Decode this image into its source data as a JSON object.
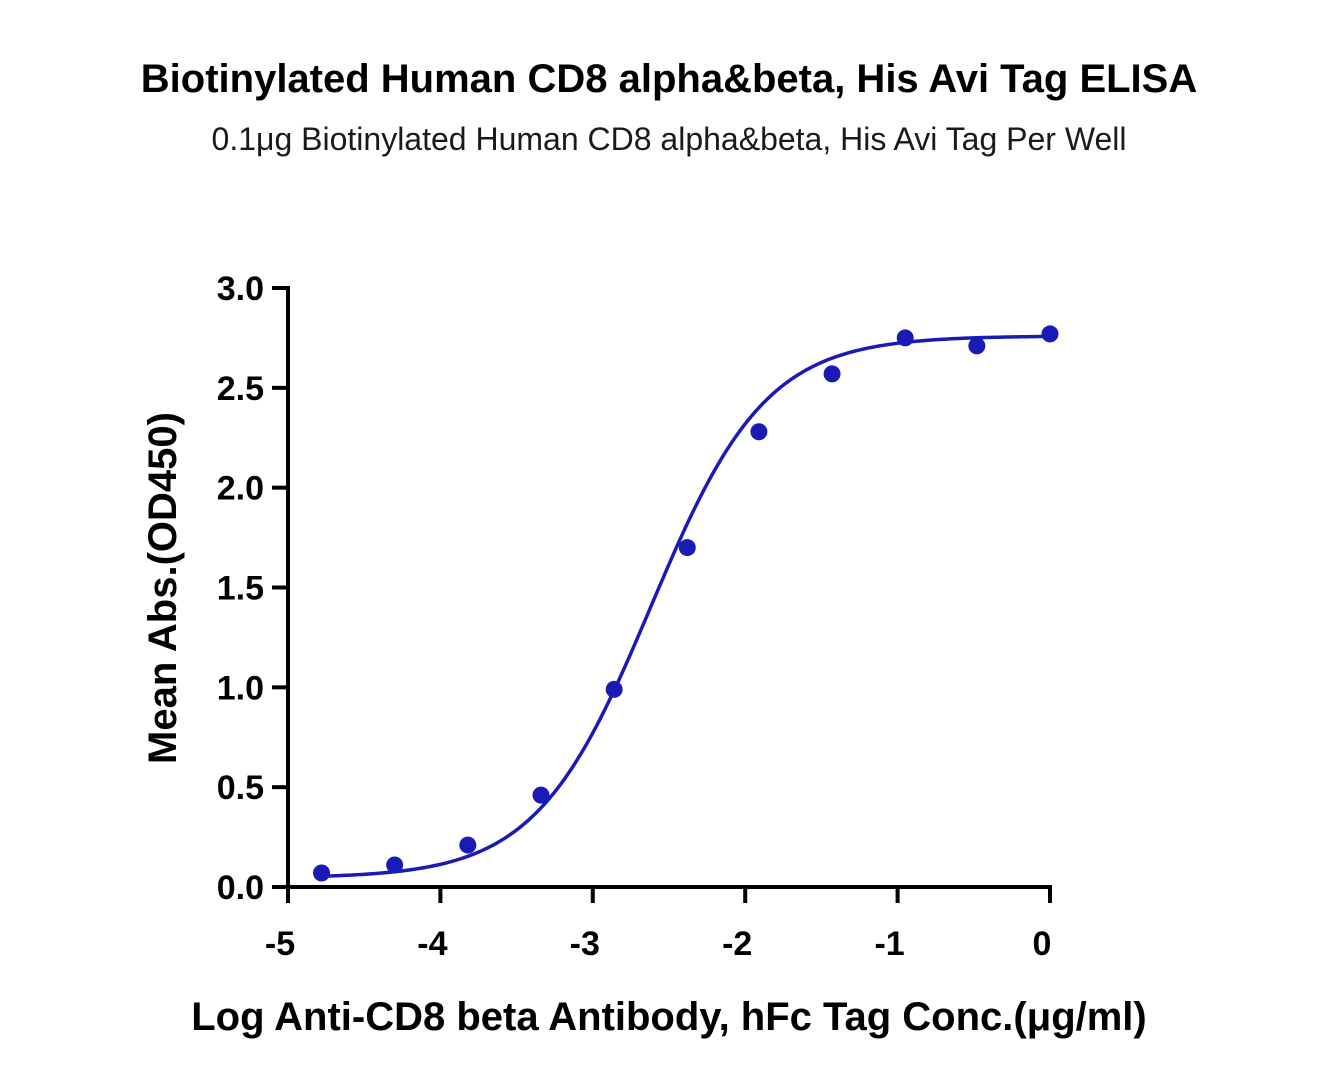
{
  "chart_data": {
    "type": "scatter",
    "title": "Biotinylated Human CD8 alpha&beta, His Avi Tag ELISA",
    "subtitle": "0.1μg Biotinylated Human CD8 alpha&beta, His Avi Tag Per Well",
    "xlabel": "Log Anti-CD8 beta Antibody, hFc Tag Conc.(μg/ml)",
    "ylabel": "Mean Abs.(OD450)",
    "xlim": [
      -5,
      0
    ],
    "ylim": [
      0,
      3
    ],
    "x_ticks": [
      -5,
      -4,
      -3,
      -2,
      -1,
      0
    ],
    "x_tick_labels": [
      "-5",
      "-4",
      "-3",
      "-2",
      "-1",
      "0"
    ],
    "y_ticks": [
      0,
      0.5,
      1,
      1.5,
      2,
      2.5,
      3
    ],
    "y_tick_labels": [
      "0.0",
      "0.5",
      "1.0",
      "1.5",
      "2.0",
      "2.5",
      "3.0"
    ],
    "grid": false,
    "legend": "none",
    "series": [
      {
        "x": [
          -4.78,
          -4.3,
          -3.82,
          -3.34,
          -2.86,
          -2.38,
          -1.91,
          -1.43,
          -0.95,
          -0.48,
          0.0
        ],
        "y": [
          0.07,
          0.11,
          0.21,
          0.46,
          0.99,
          1.7,
          2.28,
          2.57,
          2.75,
          2.71,
          2.77
        ],
        "color": "#1a1ab4",
        "marker": "circle"
      }
    ],
    "fit": {
      "model": "4PL",
      "bottom": 0.045,
      "top": 2.76,
      "logEC50": -2.62,
      "hill": 1.15,
      "color": "#1a1ab4"
    }
  }
}
